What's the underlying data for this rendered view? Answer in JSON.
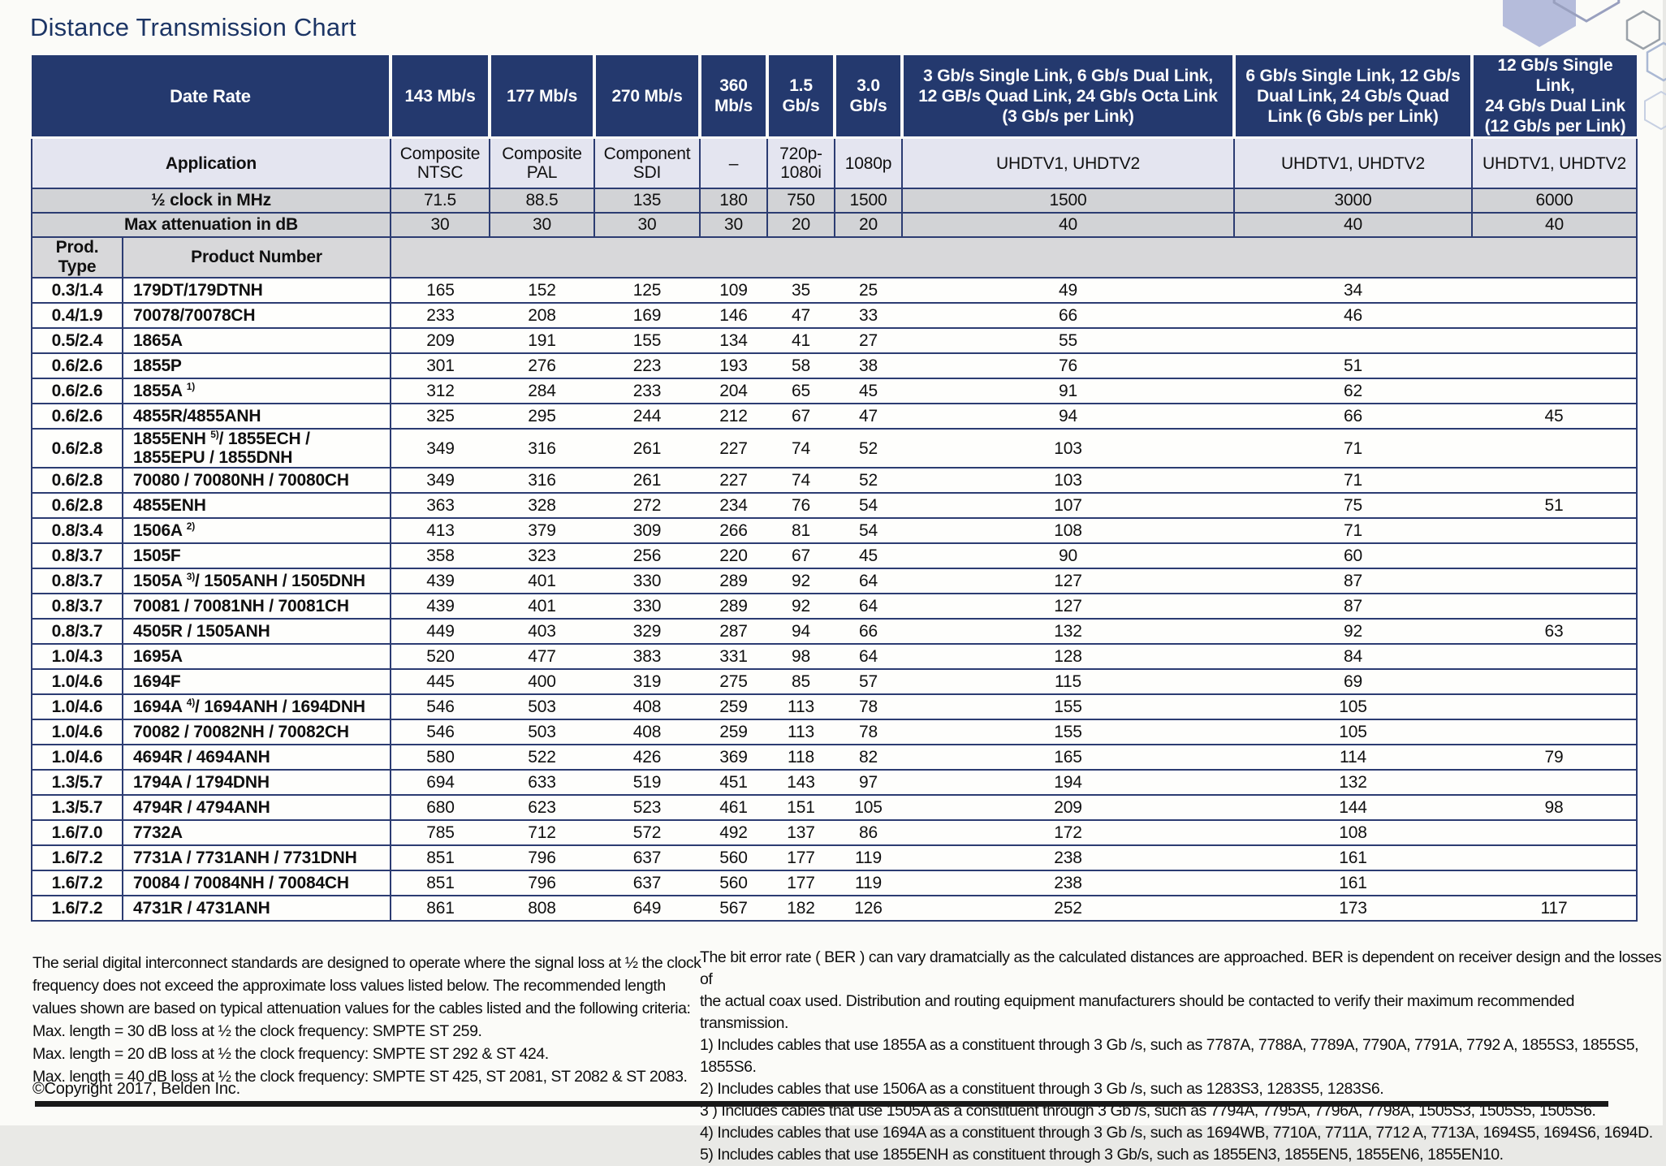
{
  "title": "Distance Transmission Chart",
  "colors": {
    "header_navy": "#24396e",
    "row_line_navy": "#2c3c72",
    "application_bg": "#e4e5f0",
    "band_grey": "#d2d3d6",
    "title_navy": "#1c3565",
    "hexagon_fill": "#b5bcdb"
  },
  "table": {
    "header": {
      "data_rate_label": "Date Rate",
      "application_label": "Application",
      "clock_label": "½ clock in MHz",
      "attenuation_label": "Max attenuation in dB",
      "prod_type_label": "Prod. Type",
      "product_number_label": "Product Number",
      "columns": [
        {
          "rate": "143 Mb/s",
          "application": "Composite\nNTSC",
          "clock": "71.5",
          "attenuation": "30"
        },
        {
          "rate": "177 Mb/s",
          "application": "Composite\nPAL",
          "clock": "88.5",
          "attenuation": "30"
        },
        {
          "rate": "270 Mb/s",
          "application": "Component\nSDI",
          "clock": "135",
          "attenuation": "30"
        },
        {
          "rate": "360\nMb/s",
          "application": "–",
          "clock": "180",
          "attenuation": "30"
        },
        {
          "rate": "1.5\nGb/s",
          "application": "720p-\n1080i",
          "clock": "750",
          "attenuation": "20"
        },
        {
          "rate": "3.0\nGb/s",
          "application": "1080p",
          "clock": "1500",
          "attenuation": "20"
        },
        {
          "rate": "3 Gb/s Single Link, 6 Gb/s Dual Link,\n12 GB/s Quad Link, 24 Gb/s Octa Link\n(3 Gb/s per Link)",
          "application": "UHDTV1, UHDTV2",
          "clock": "1500",
          "attenuation": "40"
        },
        {
          "rate": "6 Gb/s Single Link, 12 Gb/s\nDual Link, 24 Gb/s Quad\nLink (6 Gb/s per Link)",
          "application": "UHDTV1, UHDTV2",
          "clock": "3000",
          "attenuation": "40"
        },
        {
          "rate": "12 Gb/s Single Link,\n24 Gb/s Dual Link\n(12 Gb/s per Link)",
          "application": "UHDTV1, UHDTV2",
          "clock": "6000",
          "attenuation": "40"
        }
      ]
    },
    "rows": [
      {
        "type": "0.3/1.4",
        "product": "179DT/179DTNH",
        "values": [
          "165",
          "152",
          "125",
          "109",
          "35",
          "25",
          "49",
          "34",
          ""
        ]
      },
      {
        "type": "0.4/1.9",
        "product": "70078/70078CH",
        "values": [
          "233",
          "208",
          "169",
          "146",
          "47",
          "33",
          "66",
          "46",
          ""
        ]
      },
      {
        "type": "0.5/2.4",
        "product": "1865A",
        "values": [
          "209",
          "191",
          "155",
          "134",
          "41",
          "27",
          "55",
          "",
          ""
        ]
      },
      {
        "type": "0.6/2.6",
        "product": "1855P",
        "values": [
          "301",
          "276",
          "223",
          "193",
          "58",
          "38",
          "76",
          "51",
          ""
        ]
      },
      {
        "type": "0.6/2.6",
        "product": "1855A ^1)^",
        "values": [
          "312",
          "284",
          "233",
          "204",
          "65",
          "45",
          "91",
          "62",
          ""
        ]
      },
      {
        "type": "0.6/2.6",
        "product": "4855R/4855ANH",
        "values": [
          "325",
          "295",
          "244",
          "212",
          "67",
          "47",
          "94",
          "66",
          "45"
        ]
      },
      {
        "type": "0.6/2.8",
        "product": "1855ENH ^5)^/ 1855ECH /\n1855EPU / 1855DNH",
        "values": [
          "349",
          "316",
          "261",
          "227",
          "74",
          "52",
          "103",
          "71",
          ""
        ]
      },
      {
        "type": "0.6/2.8",
        "product": "70080 / 70080NH / 70080CH",
        "values": [
          "349",
          "316",
          "261",
          "227",
          "74",
          "52",
          "103",
          "71",
          ""
        ]
      },
      {
        "type": "0.6/2.8",
        "product": "4855ENH",
        "values": [
          "363",
          "328",
          "272",
          "234",
          "76",
          "54",
          "107",
          "75",
          "51"
        ]
      },
      {
        "type": "0.8/3.4",
        "product": "1506A ^2)^",
        "values": [
          "413",
          "379",
          "309",
          "266",
          "81",
          "54",
          "108",
          "71",
          ""
        ]
      },
      {
        "type": "0.8/3.7",
        "product": "1505F",
        "values": [
          "358",
          "323",
          "256",
          "220",
          "67",
          "45",
          "90",
          "60",
          ""
        ]
      },
      {
        "type": "0.8/3.7",
        "product": "1505A ^3)^/ 1505ANH / 1505DNH",
        "values": [
          "439",
          "401",
          "330",
          "289",
          "92",
          "64",
          "127",
          "87",
          ""
        ]
      },
      {
        "type": "0.8/3.7",
        "product": "70081 / 70081NH / 70081CH",
        "values": [
          "439",
          "401",
          "330",
          "289",
          "92",
          "64",
          "127",
          "87",
          ""
        ]
      },
      {
        "type": "0.8/3.7",
        "product": "4505R / 1505ANH",
        "values": [
          "449",
          "403",
          "329",
          "287",
          "94",
          "66",
          "132",
          "92",
          "63"
        ]
      },
      {
        "type": "1.0/4.3",
        "product": "1695A",
        "values": [
          "520",
          "477",
          "383",
          "331",
          "98",
          "64",
          "128",
          "84",
          ""
        ]
      },
      {
        "type": "1.0/4.6",
        "product": "1694F",
        "values": [
          "445",
          "400",
          "319",
          "275",
          "85",
          "57",
          "115",
          "69",
          ""
        ]
      },
      {
        "type": "1.0/4.6",
        "product": "1694A ^4)^/ 1694ANH / 1694DNH",
        "values": [
          "546",
          "503",
          "408",
          "259",
          "113",
          "78",
          "155",
          "105",
          ""
        ]
      },
      {
        "type": "1.0/4.6",
        "product": "70082 / 70082NH / 70082CH",
        "values": [
          "546",
          "503",
          "408",
          "259",
          "113",
          "78",
          "155",
          "105",
          ""
        ]
      },
      {
        "type": "1.0/4.6",
        "product": "4694R / 4694ANH",
        "values": [
          "580",
          "522",
          "426",
          "369",
          "118",
          "82",
          "165",
          "114",
          "79"
        ]
      },
      {
        "type": "1.3/5.7",
        "product": "1794A / 1794DNH",
        "values": [
          "694",
          "633",
          "519",
          "451",
          "143",
          "97",
          "194",
          "132",
          ""
        ]
      },
      {
        "type": "1.3/5.7",
        "product": "4794R / 4794ANH",
        "values": [
          "680",
          "623",
          "523",
          "461",
          "151",
          "105",
          "209",
          "144",
          "98"
        ]
      },
      {
        "type": "1.6/7.0",
        "product": "7732A",
        "values": [
          "785",
          "712",
          "572",
          "492",
          "137",
          "86",
          "172",
          "108",
          ""
        ]
      },
      {
        "type": "1.6/7.2",
        "product": "7731A / 7731ANH / 7731DNH",
        "values": [
          "851",
          "796",
          "637",
          "560",
          "177",
          "119",
          "238",
          "161",
          ""
        ]
      },
      {
        "type": "1.6/7.2",
        "product": "70084 / 70084NH / 70084CH",
        "values": [
          "851",
          "796",
          "637",
          "560",
          "177",
          "119",
          "238",
          "161",
          ""
        ]
      },
      {
        "type": "1.6/7.2",
        "product": "4731R / 4731ANH",
        "values": [
          "861",
          "808",
          "649",
          "567",
          "182",
          "126",
          "252",
          "173",
          "117"
        ]
      }
    ]
  },
  "footer": {
    "left_text": "The serial digital interconnect standards are designed to operate where the signal loss at ½ the clock\nfrequency does not exceed the approximate loss values listed below. The recommended length\nvalues shown are based on typical attenuation values for the cables listed and the following criteria:\nMax. length = 30 dB loss at ½ the clock frequency: SMPTE ST 259.\nMax. length = 20 dB loss at ½ the clock frequency: SMPTE ST 292 & ST 424.\nMax. length = 40 dB loss at ½ the clock frequency: SMPTE ST 425, ST 2081, ST 2082 & ST 2083.",
    "copyright": "©Copyright 2017, Belden Inc.",
    "right_text": "The bit error rate ( BER ) can vary dramatcially as the calculated distances are approached. BER is dependent on receiver design and the losses of\nthe actual coax used. Distribution and routing equipment manufacturers should be contacted to verify their maximum recommended transmission.\n1) Includes cables that use 1855A as a constituent through 3 Gb /s, such as 7787A, 7788A, 7789A, 7790A, 7791A, 7792 A, 1855S3, 1855S5, 1855S6.\n2) Includes cables that use 1506A as a constituent through 3 Gb /s, such as 1283S3, 1283S5, 1283S6.\n3 ) Includes cables that use 1505A as a constituent through 3 Gb /s, such as 7794A, 7795A, 7796A, 7798A, 1505S3, 1505S5, 1505S6.\n4) Includes cables that use 1694A as a constituent through 3 Gb /s, such as 1694WB, 7710A, 7711A, 7712 A, 7713A, 1694S5, 1694S6, 1694D.\n5) Includes cables that use 1855ENH as constituent through 3 Gb/s, such as 1855EN3, 1855EN5, 1855EN6, 1855EN10."
  }
}
